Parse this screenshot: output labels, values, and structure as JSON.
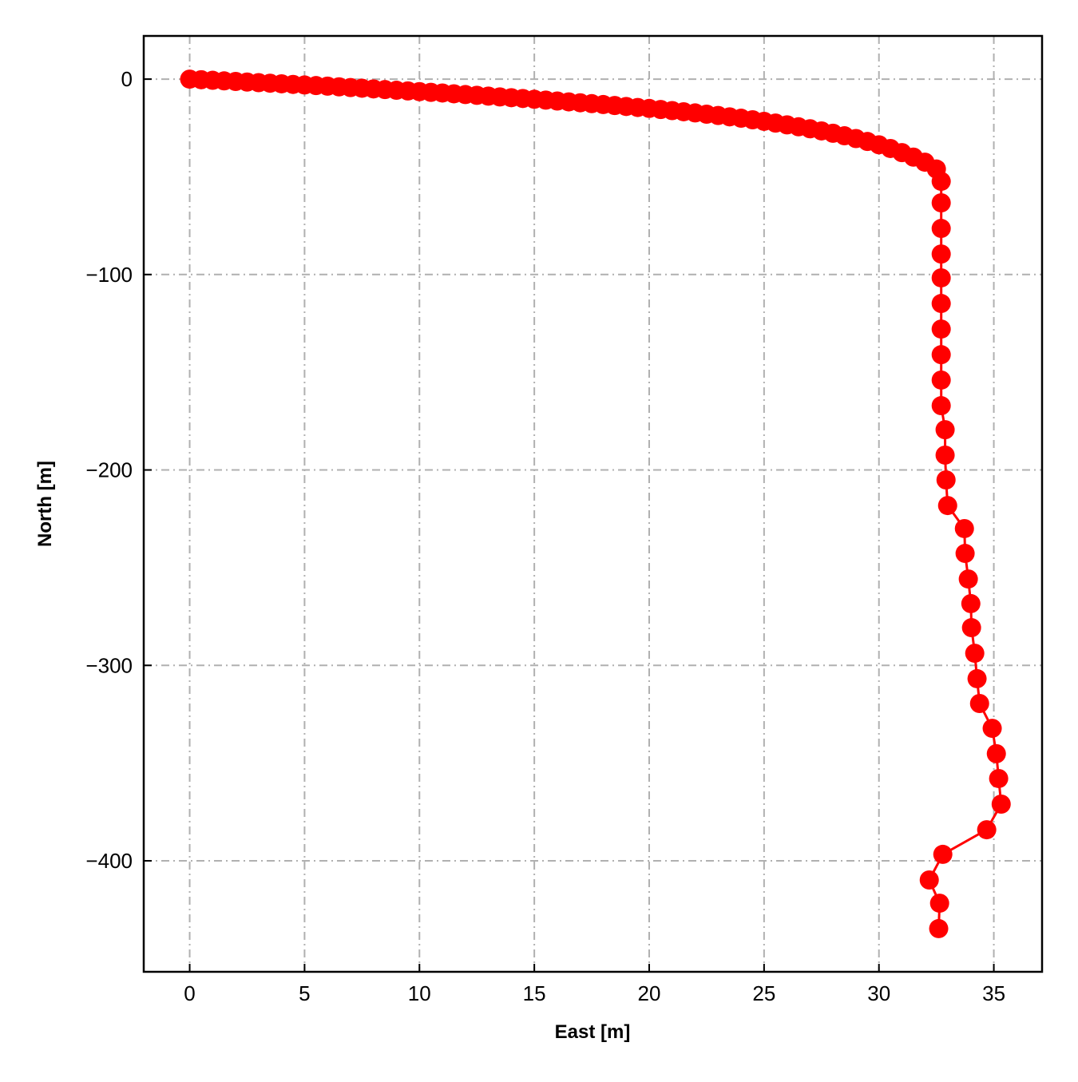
{
  "chart_data": {
    "type": "line",
    "marker": "circle",
    "xlabel": "East [m]",
    "ylabel": "North [m]",
    "xlim": [
      -2.0,
      37.1
    ],
    "ylim": [
      -456.8,
      22.1
    ],
    "xticks": [
      0,
      5,
      10,
      15,
      20,
      25,
      30,
      35
    ],
    "yticks": [
      0,
      {
        "value": -100,
        "label": "−100"
      },
      {
        "value": -200,
        "label": "−200"
      },
      {
        "value": -300,
        "label": "−300"
      },
      {
        "value": -400,
        "label": "−400"
      }
    ],
    "grid": true,
    "series": [
      {
        "color": "#ff0000",
        "x": [
          0,
          0.5,
          1,
          1.5,
          2,
          2.5,
          3,
          3.5,
          4,
          4.5,
          5,
          5.5,
          6,
          6.5,
          7,
          7.5,
          8,
          8.5,
          9,
          9.5,
          10,
          10.5,
          11,
          11.5,
          12,
          12.5,
          13,
          13.5,
          14,
          14.5,
          15,
          15.5,
          16,
          16.5,
          17,
          17.5,
          18,
          18.5,
          19,
          19.5,
          20,
          20.5,
          21,
          21.5,
          22,
          22.5,
          23,
          23.5,
          24,
          24.5,
          25,
          25.5,
          26,
          26.5,
          27,
          27.5,
          28,
          28.5,
          29,
          29.5,
          30,
          30.5,
          31,
          31.5,
          32,
          32.5,
          32.71,
          32.71,
          32.71,
          32.71,
          32.71,
          32.71,
          32.71,
          32.71,
          32.71,
          32.71,
          32.88,
          32.88,
          32.92,
          32.99,
          33.72,
          33.75,
          33.89,
          34.0,
          34.03,
          34.17,
          34.27,
          34.38,
          34.93,
          35.11,
          35.21,
          35.32,
          34.69,
          32.78,
          32.19,
          32.64,
          32.6
        ],
        "values": [
          0,
          -0.3,
          -0.6,
          -0.9,
          -1.2,
          -1.5,
          -1.8,
          -2.1,
          -2.4,
          -2.7,
          -3.0,
          -3.3,
          -3.6,
          -3.95,
          -4.3,
          -4.65,
          -5.0,
          -5.35,
          -5.7,
          -6.05,
          -6.4,
          -6.75,
          -7.1,
          -7.5,
          -7.9,
          -8.3,
          -8.7,
          -9.1,
          -9.5,
          -9.9,
          -10.3,
          -10.75,
          -11.2,
          -11.65,
          -12.1,
          -12.55,
          -13.0,
          -13.5,
          -14.0,
          -14.5,
          -15.0,
          -15.55,
          -16.1,
          -16.7,
          -17.3,
          -17.95,
          -18.6,
          -19.3,
          -20.0,
          -20.8,
          -21.6,
          -22.5,
          -23.4,
          -24.4,
          -25.4,
          -26.5,
          -27.7,
          -29.0,
          -30.4,
          -31.9,
          -33.6,
          -35.5,
          -37.6,
          -39.9,
          -42.5,
          -46.0,
          -52.3,
          -63.3,
          -76.4,
          -89.5,
          -101.7,
          -114.8,
          -127.9,
          -141.0,
          -154.0,
          -167.1,
          -179.4,
          -192.4,
          -205.1,
          -218.2,
          -230.0,
          -242.7,
          -255.8,
          -268.4,
          -280.7,
          -293.8,
          -306.8,
          -319.5,
          -332.2,
          -345.2,
          -357.9,
          -371.0,
          -384.1,
          -396.7,
          -409.8,
          -421.7,
          -434.7
        ]
      }
    ]
  }
}
